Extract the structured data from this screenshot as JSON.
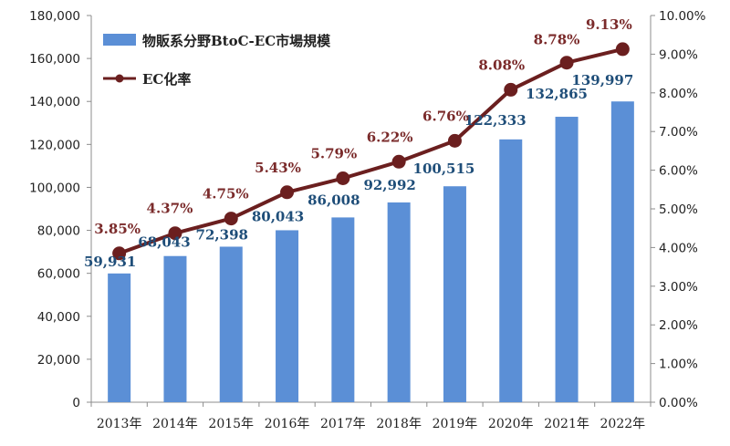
{
  "chart_data": {
    "type": "bar",
    "categories": [
      "2013年",
      "2014年",
      "2015年",
      "2016年",
      "2017年",
      "2018年",
      "2019年",
      "2020年",
      "2021年",
      "2022年"
    ],
    "series": [
      {
        "name": "物販系分野BtoC-EC市場規模",
        "type": "bar",
        "axis": "left",
        "values": [
          59931,
          68043,
          72398,
          80043,
          86008,
          92992,
          100515,
          122333,
          132865,
          139997
        ],
        "labels": [
          "59,931",
          "68,043",
          "72,398",
          "80,043",
          "86,008",
          "92,992",
          "100,515",
          "122,333",
          "132,865",
          "139,997"
        ],
        "color": "#5b8fd6",
        "label_color": "#1f4e79"
      },
      {
        "name": "EC化率",
        "type": "line",
        "axis": "right",
        "values": [
          3.85,
          4.37,
          4.75,
          5.43,
          5.79,
          6.22,
          6.76,
          8.08,
          8.78,
          9.13
        ],
        "labels": [
          "3.85%",
          "4.37%",
          "4.75%",
          "5.43%",
          "5.79%",
          "6.22%",
          "6.76%",
          "8.08%",
          "8.78%",
          "9.13%"
        ],
        "color": "#6b1f1f",
        "label_color": "#7a2a2a"
      }
    ],
    "y_left": {
      "ylim": [
        0,
        180000
      ],
      "ticks": [
        0,
        20000,
        40000,
        60000,
        80000,
        100000,
        120000,
        140000,
        160000,
        180000
      ],
      "tick_labels": [
        "0",
        "20,000",
        "40,000",
        "60,000",
        "80,000",
        "100,000",
        "120,000",
        "140,000",
        "160,000",
        "180,000"
      ]
    },
    "y_right": {
      "ylim": [
        0,
        10
      ],
      "ticks": [
        0,
        1,
        2,
        3,
        4,
        5,
        6,
        7,
        8,
        9,
        10
      ],
      "tick_labels": [
        "0.00%",
        "1.00%",
        "2.00%",
        "3.00%",
        "4.00%",
        "5.00%",
        "6.00%",
        "7.00%",
        "8.00%",
        "9.00%",
        "10.00%"
      ]
    },
    "grid": false,
    "legend": "top-left"
  }
}
